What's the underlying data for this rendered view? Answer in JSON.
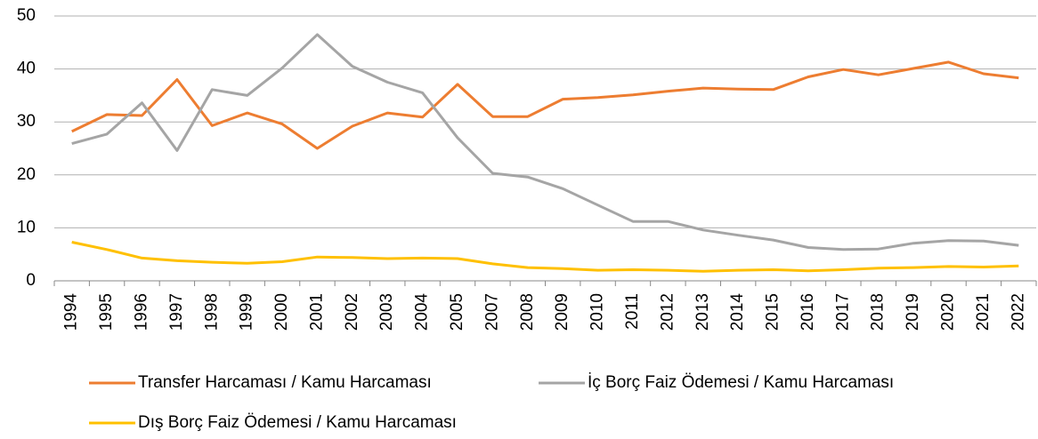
{
  "chart_data": {
    "type": "line",
    "categories": [
      "1994",
      "1995",
      "1996",
      "1997",
      "1998",
      "1999",
      "2000",
      "2001",
      "2002",
      "2003",
      "2004",
      "2005",
      "2007",
      "2008",
      "2009",
      "2010",
      "2011",
      "2012",
      "2013",
      "2014",
      "2015",
      "2016",
      "2017",
      "2018",
      "2019",
      "2020",
      "2021",
      "2022"
    ],
    "series": [
      {
        "name": "Transfer Harcaması / Kamu Harcaması",
        "color": "#ED7D31",
        "values": [
          28.2,
          31.4,
          31.2,
          38,
          29.3,
          31.7,
          29.6,
          25,
          29.2,
          31.7,
          30.9,
          37.1,
          31,
          31,
          34.3,
          34.6,
          35.1,
          35.8,
          36.4,
          36.2,
          36.1,
          38.5,
          39.9,
          38.9,
          40.1,
          41.3,
          39.1,
          38.3
        ]
      },
      {
        "name": "İç Borç Faiz Ödemesi / Kamu Harcaması",
        "color": "#A5A5A5",
        "values": [
          25.9,
          27.7,
          33.6,
          24.6,
          36.1,
          35,
          40.2,
          46.5,
          40.5,
          37.5,
          35.5,
          27,
          20.3,
          19.6,
          17.4,
          14.3,
          11.2,
          11.2,
          9.6,
          8.6,
          7.7,
          6.3,
          5.9,
          6,
          7.1,
          7.6,
          7.5,
          6.7
        ]
      },
      {
        "name": "Dış Borç Faiz Ödemesi / Kamu Harcaması",
        "color": "#FFC000",
        "values": [
          7.3,
          5.9,
          4.3,
          3.8,
          3.5,
          3.3,
          3.6,
          4.5,
          4.4,
          4.2,
          4.3,
          4.2,
          3.2,
          2.5,
          2.3,
          2.0,
          2.1,
          2.0,
          1.8,
          2.0,
          2.1,
          1.9,
          2.1,
          2.4,
          2.5,
          2.7,
          2.6,
          2.8
        ]
      }
    ],
    "ylim": [
      0,
      50
    ],
    "yticks": [
      0,
      10,
      20,
      30,
      40,
      50
    ],
    "grid": true,
    "legend": "bottom"
  }
}
